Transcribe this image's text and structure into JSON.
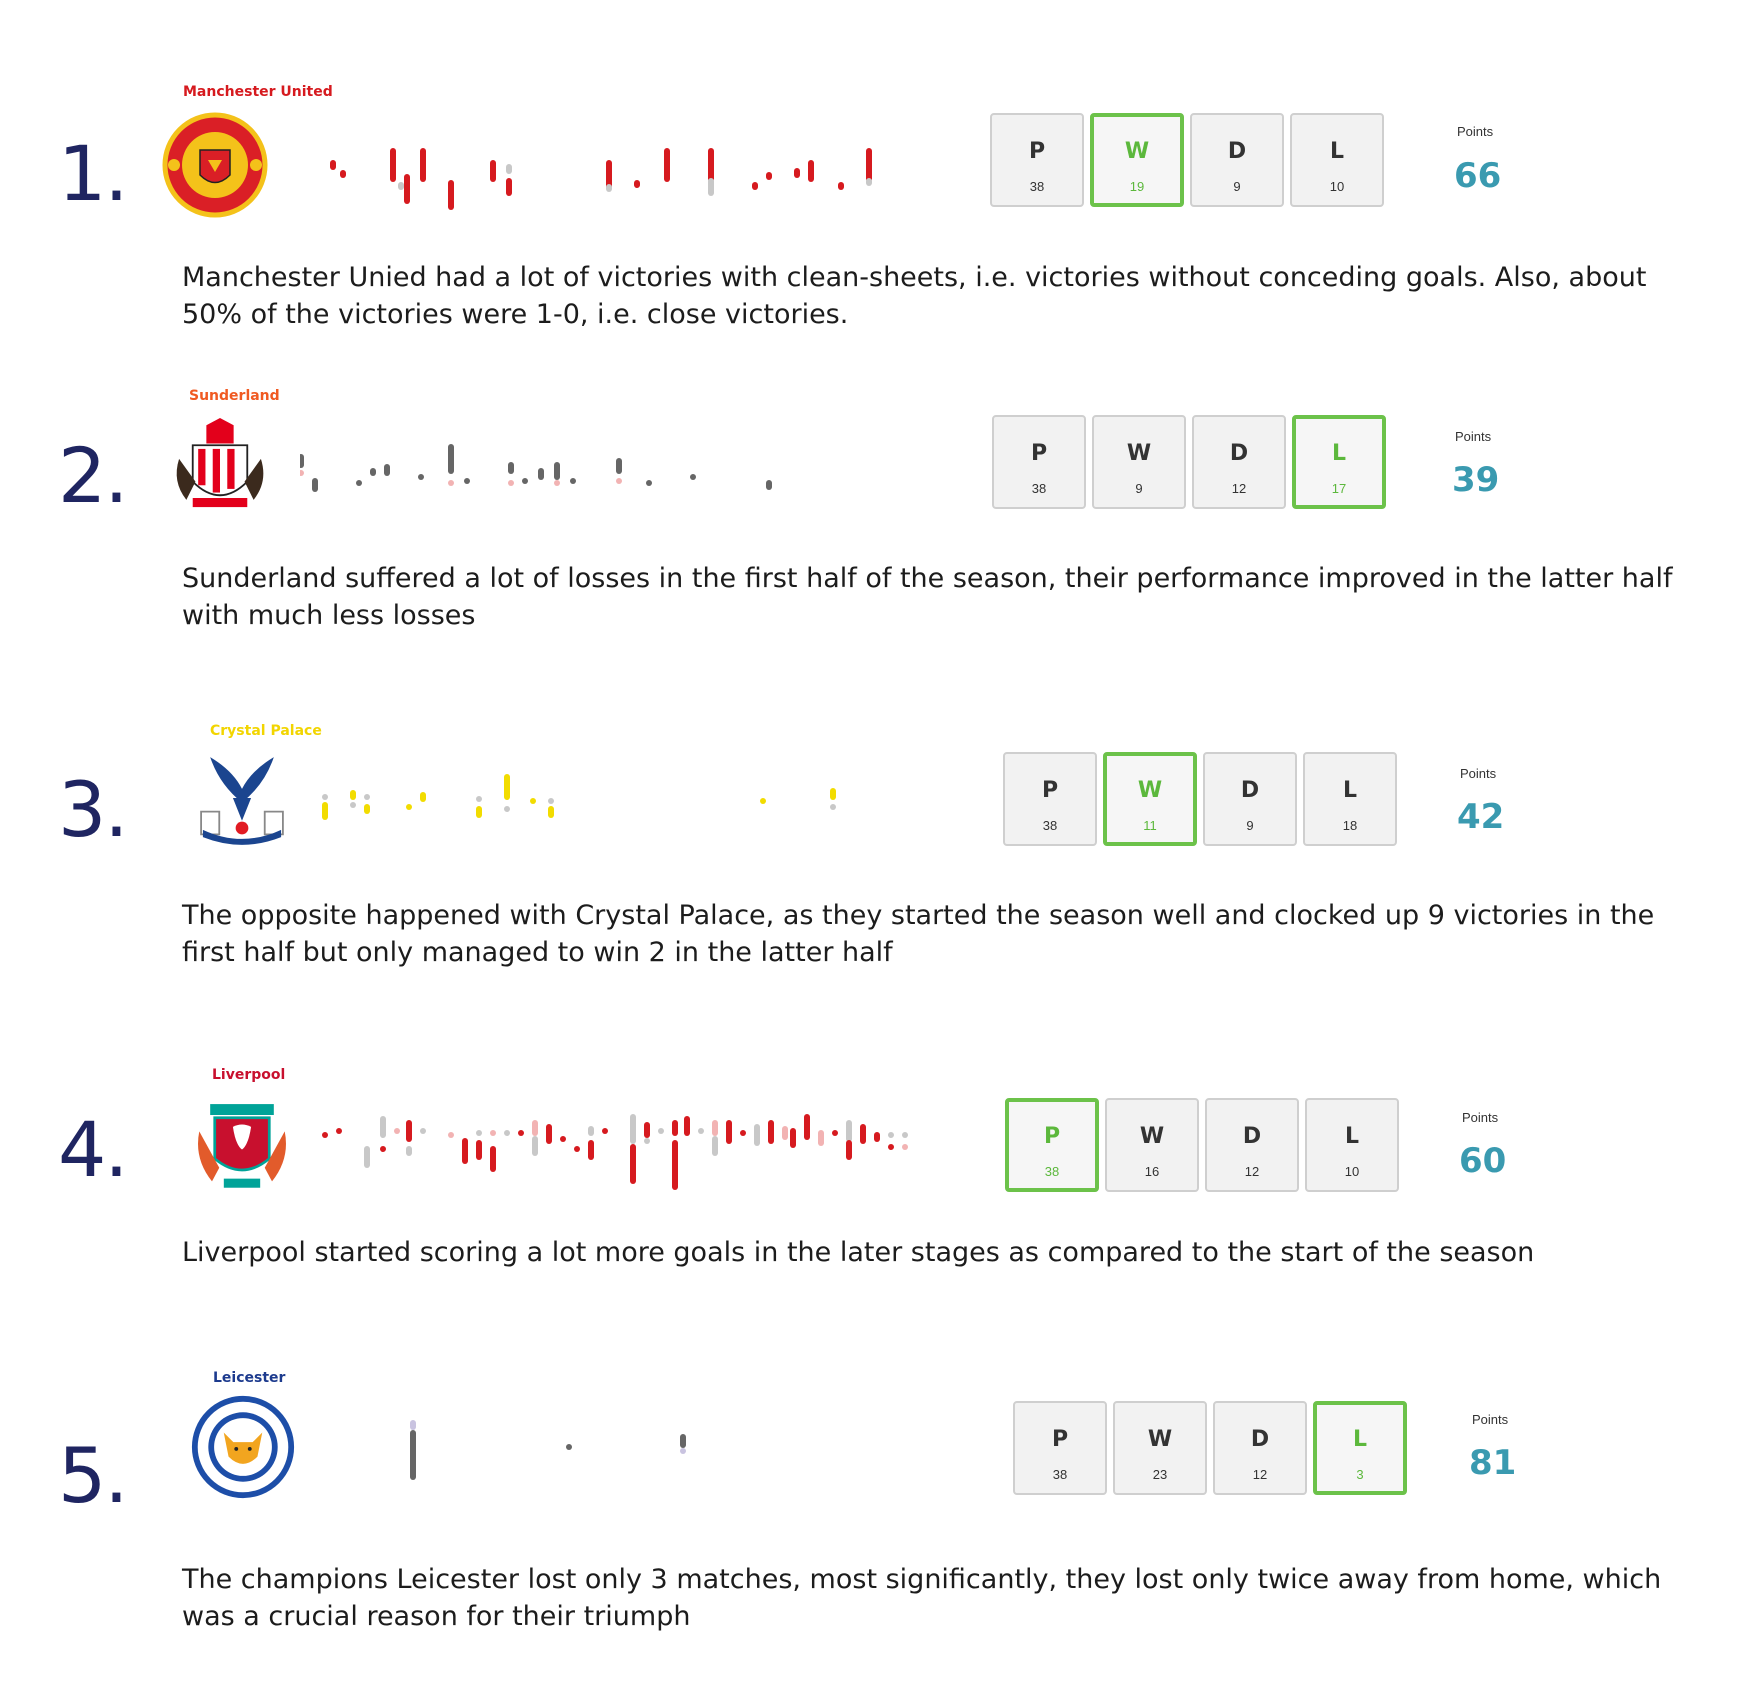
{
  "chart_data": [
    {
      "type": "table",
      "rank": "1.",
      "team": "Manchester United",
      "name_color": "#d61a1f",
      "results_color": "#d61a1f",
      "stats": {
        "P": "38",
        "W": "19",
        "D": "9",
        "L": "10"
      },
      "highlight": "W",
      "points_label": "Points",
      "points": "66",
      "description": "Manchester Unied had a lot of victories with clean-sheets, i.e. victories without conceding goals. Also, about 50% of the victories were 1-0, i.e. close victories."
    },
    {
      "type": "table",
      "rank": "2.",
      "team": "Sunderland",
      "name_color": "#f05a22",
      "results_color": "#666666",
      "stats": {
        "P": "38",
        "W": "9",
        "D": "12",
        "L": "17"
      },
      "highlight": "L",
      "points_label": "Points",
      "points": "39",
      "description": "Sunderland suffered a lot of losses in the first half of the season, their performance improved in the latter half with much less losses"
    },
    {
      "type": "table",
      "rank": "3.",
      "team": "Crystal Palace",
      "name_color": "#f2d500",
      "results_color": "#f2dc00",
      "stats": {
        "P": "38",
        "W": "11",
        "D": "9",
        "L": "18"
      },
      "highlight": "W",
      "points_label": "Points",
      "points": "42",
      "description": "The opposite happened with Crystal Palace, as they started the season well and clocked up 9 victories in the first half but only managed to win 2 in the latter half"
    },
    {
      "type": "table",
      "rank": "4.",
      "team": "Liverpool",
      "name_color": "#c8102e",
      "results_color": "#d61a1f",
      "stats": {
        "P": "38",
        "W": "16",
        "D": "12",
        "L": "10"
      },
      "highlight": "P",
      "points_label": "Points",
      "points": "60",
      "description": "Liverpool started scoring a lot more goals in the later stages as compared to the start of the season"
    },
    {
      "type": "table",
      "rank": "5.",
      "team": "Leicester",
      "name_color": "#1d3b8e",
      "results_color": "#666666",
      "stats": {
        "P": "38",
        "W": "23",
        "D": "12",
        "L": "3"
      },
      "highlight": "L",
      "points_label": "Points",
      "points": "81",
      "description": "The champions Leicester lost only 3 matches, most significantly, they lost only twice away from home, which was a crucial reason for their triumph"
    }
  ]
}
